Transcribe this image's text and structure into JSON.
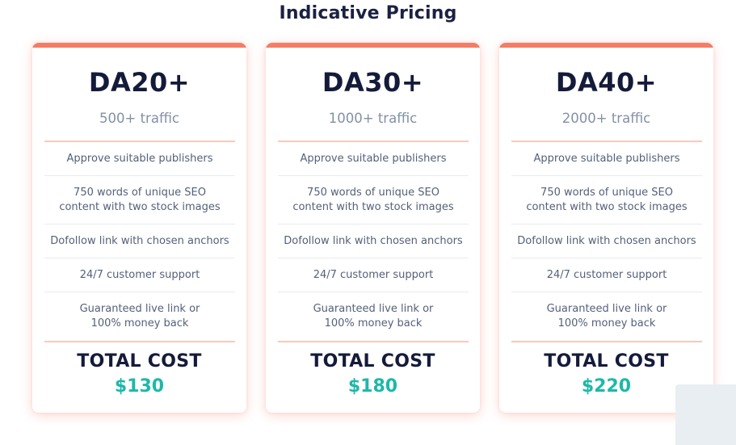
{
  "page": {
    "title": "Indicative Pricing"
  },
  "colors": {
    "accent": "#f57c65",
    "price": "#1db8a8",
    "heading": "#141b3a",
    "muted": "#8290a6"
  },
  "plans": [
    {
      "name": "DA20+",
      "traffic": "500+ traffic",
      "features": [
        "Approve suitable publishers",
        "750 words of unique SEO content with two stock images",
        "Dofollow link with chosen anchors",
        "24/7 customer support",
        "Guaranteed live link or\n100% money back"
      ],
      "total_label": "TOTAL COST",
      "price": "$130"
    },
    {
      "name": "DA30+",
      "traffic": "1000+ traffic",
      "features": [
        "Approve suitable publishers",
        "750 words of unique SEO content with two stock images",
        "Dofollow link with chosen anchors",
        "24/7 customer support",
        "Guaranteed live link or\n100% money back"
      ],
      "total_label": "TOTAL COST",
      "price": "$180"
    },
    {
      "name": "DA40+",
      "traffic": "2000+ traffic",
      "features": [
        "Approve suitable publishers",
        "750 words of unique SEO content with two stock images",
        "Dofollow link with chosen anchors",
        "24/7 customer support",
        "Guaranteed live link or\n100% money back"
      ],
      "total_label": "TOTAL COST",
      "price": "$220"
    }
  ]
}
